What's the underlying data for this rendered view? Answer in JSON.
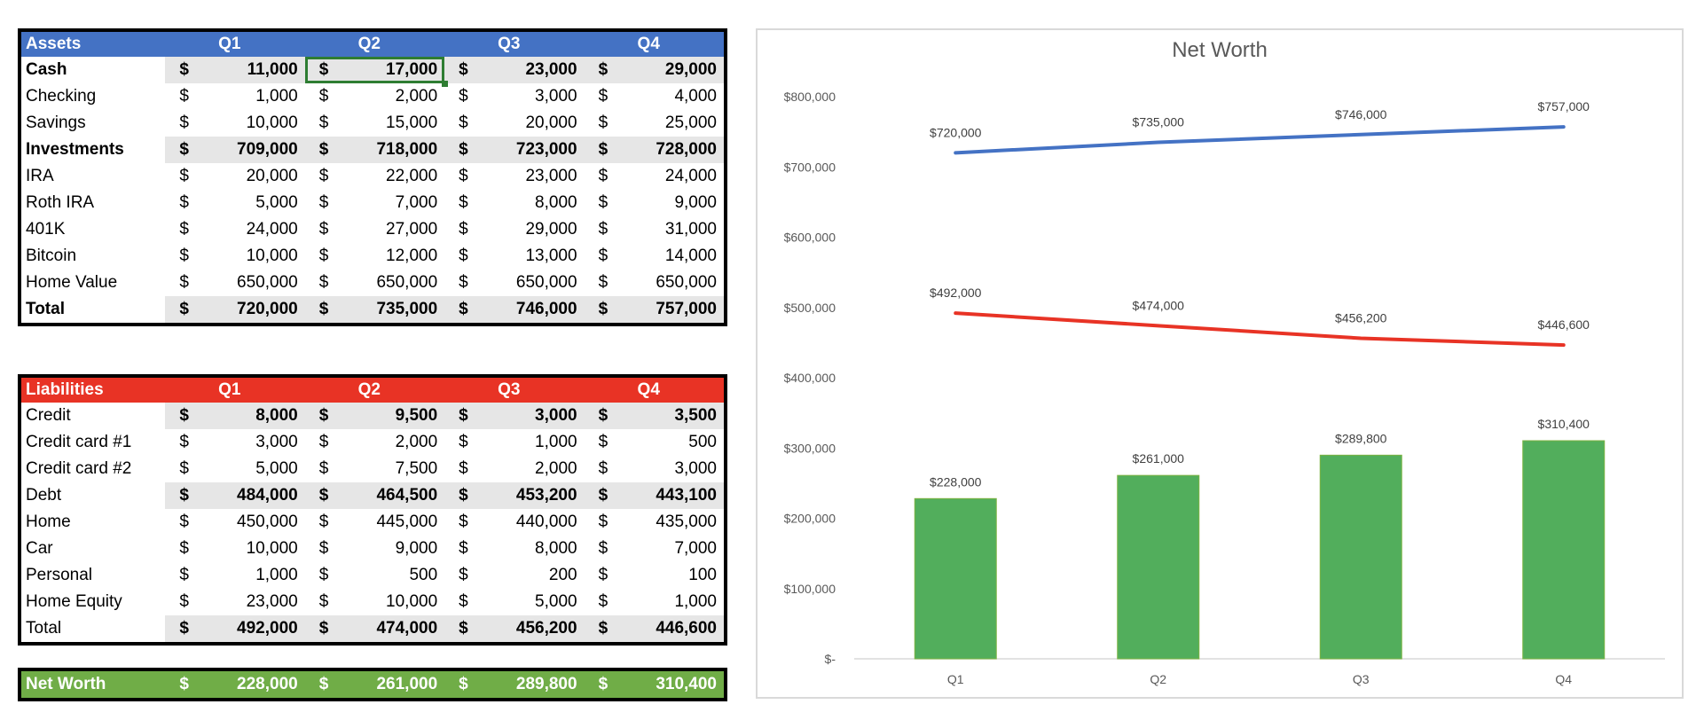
{
  "assets": {
    "title": "Assets",
    "quarters": [
      "Q1",
      "Q2",
      "Q3",
      "Q4"
    ],
    "rows": [
      {
        "label": "Cash",
        "values": [
          "11,000",
          "17,000",
          "23,000",
          "29,000"
        ],
        "subtotal": true
      },
      {
        "label": "Checking",
        "values": [
          "1,000",
          "2,000",
          "3,000",
          "4,000"
        ]
      },
      {
        "label": "Savings",
        "values": [
          "10,000",
          "15,000",
          "20,000",
          "25,000"
        ]
      },
      {
        "label": "Investments",
        "values": [
          "709,000",
          "718,000",
          "723,000",
          "728,000"
        ],
        "subtotal": true
      },
      {
        "label": "IRA",
        "values": [
          "20,000",
          "22,000",
          "23,000",
          "24,000"
        ]
      },
      {
        "label": "Roth IRA",
        "values": [
          "5,000",
          "7,000",
          "8,000",
          "9,000"
        ]
      },
      {
        "label": "401K",
        "values": [
          "24,000",
          "27,000",
          "29,000",
          "31,000"
        ]
      },
      {
        "label": "Bitcoin",
        "values": [
          "10,000",
          "12,000",
          "13,000",
          "14,000"
        ]
      },
      {
        "label": "Home Value",
        "values": [
          "650,000",
          "650,000",
          "650,000",
          "650,000"
        ]
      },
      {
        "label": "Total",
        "values": [
          "720,000",
          "735,000",
          "746,000",
          "757,000"
        ],
        "subtotal": true
      }
    ]
  },
  "liabilities": {
    "title": "Liabilities",
    "quarters": [
      "Q1",
      "Q2",
      "Q3",
      "Q4"
    ],
    "rows": [
      {
        "label": "Credit",
        "values": [
          "8,000",
          "9,500",
          "3,000",
          "3,500"
        ],
        "subtotal": true
      },
      {
        "label": "Credit card #1",
        "values": [
          "3,000",
          "2,000",
          "1,000",
          "500"
        ]
      },
      {
        "label": "Credit card #2",
        "values": [
          "5,000",
          "7,500",
          "2,000",
          "3,000"
        ]
      },
      {
        "label": "Debt",
        "values": [
          "484,000",
          "464,500",
          "453,200",
          "443,100"
        ],
        "subtotal": true
      },
      {
        "label": "Home",
        "values": [
          "450,000",
          "445,000",
          "440,000",
          "435,000"
        ]
      },
      {
        "label": "Car",
        "values": [
          "10,000",
          "9,000",
          "8,000",
          "7,000"
        ]
      },
      {
        "label": "Personal",
        "values": [
          "1,000",
          "500",
          "200",
          "100"
        ]
      },
      {
        "label": "Home Equity",
        "values": [
          "23,000",
          "10,000",
          "5,000",
          "1,000"
        ]
      },
      {
        "label": "Total",
        "values": [
          "492,000",
          "474,000",
          "456,200",
          "446,600"
        ],
        "subtotal": true
      }
    ]
  },
  "net_worth": {
    "label": "Net Worth",
    "values": [
      "228,000",
      "261,000",
      "289,800",
      "310,400"
    ]
  },
  "currency_symbol": "$",
  "colors": {
    "assets": "#4472C4",
    "liabilities": "#E83325",
    "net_worth": "#70AD47",
    "bars": "#52AE5C"
  },
  "chart_data": {
    "type": "bar",
    "title": "Net Worth",
    "categories": [
      "Q1",
      "Q2",
      "Q3",
      "Q4"
    ],
    "ylim": [
      0,
      800000
    ],
    "yticks": [
      0,
      100000,
      200000,
      300000,
      400000,
      500000,
      600000,
      700000,
      800000
    ],
    "ytick_labels": [
      "$-",
      "$100,000",
      "$200,000",
      "$300,000",
      "$400,000",
      "$500,000",
      "$600,000",
      "$700,000",
      "$800,000"
    ],
    "series": [
      {
        "name": "Net Worth",
        "kind": "bar",
        "color": "#52AE5C",
        "values": [
          228000,
          261000,
          289800,
          310400
        ],
        "labels": [
          "$228,000",
          "$261,000",
          "$289,800",
          "$310,400"
        ]
      },
      {
        "name": "Assets",
        "kind": "line",
        "color": "#4472C4",
        "values": [
          720000,
          735000,
          746000,
          757000
        ],
        "labels": [
          "$720,000",
          "$735,000",
          "$746,000",
          "$757,000"
        ]
      },
      {
        "name": "Liabilities",
        "kind": "line",
        "color": "#E83325",
        "values": [
          492000,
          474000,
          456200,
          446600
        ],
        "labels": [
          "$492,000",
          "$474,000",
          "$456,200",
          "$446,600"
        ]
      }
    ]
  }
}
